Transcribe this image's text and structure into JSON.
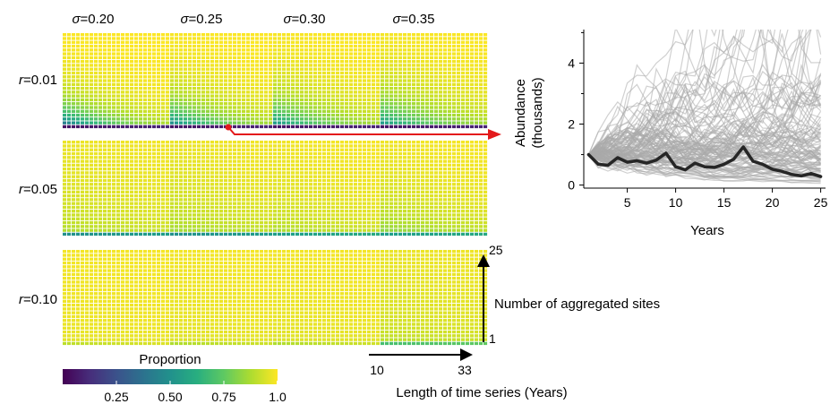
{
  "chart_data": [
    {
      "type": "heatmap",
      "column_symbol": "σ",
      "column_values": [
        "0.20",
        "0.25",
        "0.30",
        "0.35"
      ],
      "row_symbol": "r",
      "row_values": [
        "0.01",
        "0.05",
        "0.10"
      ],
      "grid": {
        "x_cells": 24,
        "y_cells": 25
      },
      "x_axis": {
        "label": "Length of time series (Years)",
        "min_label": "10",
        "max_label": "33"
      },
      "y_axis": {
        "label": "Number of aggregated sites",
        "min_label": "1",
        "max_label": "25"
      },
      "colorbar": {
        "title": "Proportion",
        "ticks": [
          "0.25",
          "0.50",
          "0.75",
          "1.0"
        ],
        "tick_values": [
          0.25,
          0.5,
          0.75,
          1.0
        ],
        "range": [
          0.0,
          1.0
        ],
        "colormap": "viridis"
      },
      "panels": [
        {
          "row": 0,
          "col": 0,
          "floor": 0.35,
          "scale": 3.0,
          "depth": 1.3,
          "bottom_min": 0.05
        },
        {
          "row": 0,
          "col": 1,
          "floor": 0.45,
          "scale": 2.6,
          "depth": 1.2,
          "bottom_min": 0.05
        },
        {
          "row": 0,
          "col": 2,
          "floor": 0.5,
          "scale": 2.4,
          "depth": 1.1,
          "bottom_min": 0.05
        },
        {
          "row": 0,
          "col": 3,
          "floor": 0.52,
          "scale": 2.2,
          "depth": 1.1,
          "bottom_min": 0.05
        },
        {
          "row": 1,
          "col": 0,
          "floor": 0.9,
          "scale": 0.8,
          "depth": 1.0,
          "bottom_min": 0.5
        },
        {
          "row": 1,
          "col": 1,
          "floor": 0.88,
          "scale": 0.9,
          "depth": 1.2,
          "bottom_min": 0.5
        },
        {
          "row": 1,
          "col": 2,
          "floor": 0.9,
          "scale": 1.0,
          "depth": 1.3,
          "bottom_min": 0.55
        },
        {
          "row": 1,
          "col": 3,
          "floor": 0.85,
          "scale": 1.2,
          "depth": 1.5,
          "bottom_min": 0.55
        },
        {
          "row": 2,
          "col": 0,
          "floor": 0.97,
          "scale": 0.4,
          "depth": 0.4,
          "bottom_min": 0.9
        },
        {
          "row": 2,
          "col": 1,
          "floor": 0.96,
          "scale": 0.5,
          "depth": 0.5,
          "bottom_min": 0.88
        },
        {
          "row": 2,
          "col": 2,
          "floor": 0.96,
          "scale": 0.5,
          "depth": 0.5,
          "bottom_min": 0.88
        },
        {
          "row": 2,
          "col": 3,
          "floor": 0.92,
          "scale": 0.6,
          "depth": 1.0,
          "bottom_min": 0.7
        }
      ]
    },
    {
      "type": "line",
      "xlabel": "Years",
      "ylabel_lines": [
        "Abundance",
        "(thousands)"
      ],
      "xlim": [
        0.5,
        25.5
      ],
      "ylim": [
        -0.1,
        5.1
      ],
      "xticks": [
        5,
        10,
        15,
        20,
        25
      ],
      "yticks": [
        0,
        2,
        4
      ],
      "x": [
        1,
        2,
        3,
        4,
        5,
        6,
        7,
        8,
        9,
        10,
        11,
        12,
        13,
        14,
        15,
        16,
        17,
        18,
        19,
        20,
        21,
        22,
        23,
        24,
        25
      ],
      "highlighted_series": {
        "values": [
          1.0,
          0.68,
          0.65,
          0.9,
          0.75,
          0.8,
          0.72,
          0.82,
          1.05,
          0.6,
          0.5,
          0.72,
          0.6,
          0.58,
          0.68,
          0.85,
          1.25,
          0.78,
          0.68,
          0.52,
          0.45,
          0.35,
          0.3,
          0.38,
          0.28
        ],
        "color": "#262626"
      },
      "background_series": {
        "count": 120,
        "color": "#a9a9a9",
        "start": 1.0
      }
    }
  ],
  "annotation": {
    "arrow_color": "#e31a1c",
    "linked_panel": {
      "row": 0,
      "col": 1
    }
  }
}
